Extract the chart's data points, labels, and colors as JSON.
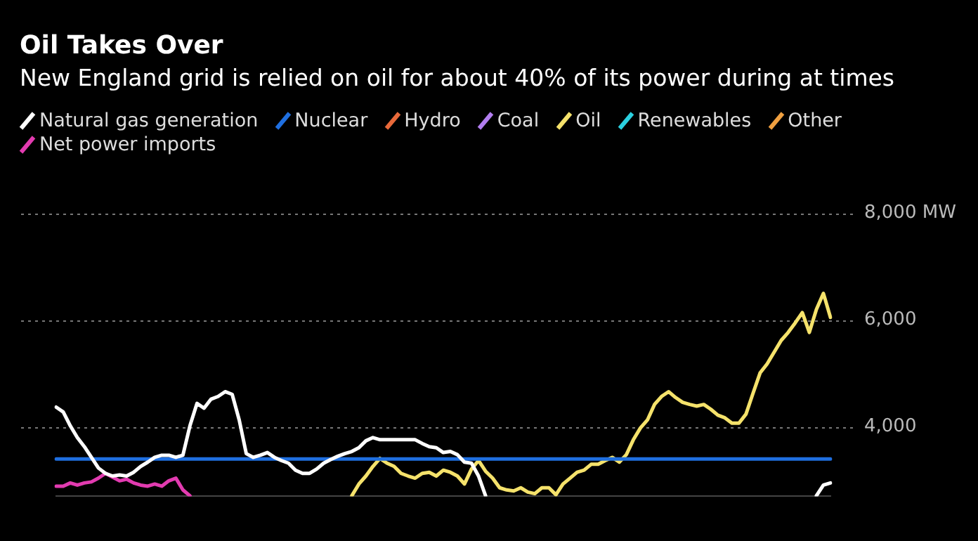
{
  "chart_data": {
    "type": "line",
    "title": "Oil Takes Over",
    "subtitle": "New England grid is relied on oil for about 40% of its power during at times",
    "categories": [
      null,
      null,
      null,
      null,
      null,
      null,
      null,
      null,
      null,
      null,
      null,
      null,
      null,
      null,
      null,
      null,
      null,
      null,
      null,
      null,
      null,
      null,
      null,
      null,
      null,
      null,
      null,
      null,
      null,
      null,
      null,
      null,
      null,
      null,
      null,
      null,
      null,
      null,
      null,
      null,
      null,
      null,
      null,
      null,
      null,
      null,
      null,
      null,
      null,
      null,
      null,
      null,
      null,
      null,
      null,
      null,
      null,
      null,
      null,
      null,
      null,
      null,
      null,
      null,
      null,
      null,
      null,
      null,
      null,
      null,
      null,
      null,
      null,
      null,
      null,
      null,
      null,
      null,
      null,
      null,
      null,
      null,
      null,
      null,
      null,
      null,
      null,
      null,
      null,
      null,
      null,
      null,
      null,
      null,
      null,
      null,
      null,
      null,
      null,
      null,
      null,
      null,
      null,
      null,
      null,
      null,
      null,
      null,
      null,
      null,
      null
    ],
    "series": [
      {
        "name": "Natural gas generation",
        "color": "#ffffff",
        "values": [
          4370,
          4280,
          4020,
          3800,
          3630,
          3430,
          3230,
          3130,
          3080,
          3100,
          3080,
          3150,
          3260,
          3340,
          3430,
          3470,
          3470,
          3430,
          3470,
          4020,
          4440,
          4350,
          4520,
          4570,
          4660,
          4610,
          4130,
          3500,
          3430,
          3470,
          3520,
          3430,
          3370,
          3320,
          3190,
          3130,
          3130,
          3210,
          3320,
          3390,
          3450,
          3500,
          3540,
          3610,
          3740,
          3800,
          3760,
          3760,
          3760,
          3760,
          3760,
          3760,
          3690,
          3630,
          3610,
          3520,
          3540,
          3480,
          3340,
          3320,
          3080,
          2710,
          null,
          null,
          null,
          null,
          null,
          null,
          null,
          null,
          null,
          null,
          null,
          null,
          null,
          null,
          null,
          null,
          null,
          null,
          null,
          null,
          null,
          null,
          null,
          null,
          null,
          null,
          null,
          null,
          null,
          null,
          null,
          null,
          null,
          null,
          null,
          null,
          null,
          null,
          null,
          null,
          null,
          null,
          null,
          null,
          null,
          null,
          2710,
          2910,
          2950
        ]
      },
      {
        "name": "Nuclear",
        "color": "#1f6fe0",
        "values": [
          3400,
          3400,
          3400,
          3400,
          3400,
          3400,
          3400,
          3400,
          3400,
          3400,
          3400,
          3400,
          3400,
          3400,
          3400,
          3400,
          3400,
          3400,
          3400,
          3400,
          3400,
          3400,
          3400,
          3400,
          3400,
          3400,
          3400,
          3400,
          3400,
          3400,
          3400,
          3400,
          3400,
          3400,
          3400,
          3400,
          3400,
          3400,
          3400,
          3400,
          3400,
          3400,
          3400,
          3400,
          3400,
          3400,
          3400,
          3400,
          3400,
          3400,
          3400,
          3400,
          3400,
          3400,
          3400,
          3400,
          3400,
          3400,
          3400,
          3400,
          3400,
          3400,
          3400,
          3400,
          3400,
          3400,
          3400,
          3400,
          3400,
          3400,
          3400,
          3400,
          3400,
          3400,
          3400,
          3400,
          3400,
          3400,
          3400,
          3400,
          3400,
          3400,
          3400,
          3400,
          3400,
          3400,
          3400,
          3400,
          3400,
          3400,
          3400,
          3400,
          3400,
          3400,
          3400,
          3400,
          3400,
          3400,
          3400,
          3400,
          3400,
          3400,
          3400,
          3400,
          3400,
          3400,
          3400,
          3400,
          3400,
          3400,
          3400
        ]
      },
      {
        "name": "Hydro",
        "color": "#e8693a",
        "values": [
          null,
          null,
          null,
          null,
          null,
          null,
          null,
          null,
          null,
          null,
          null,
          null,
          null,
          null,
          null,
          null,
          null,
          null,
          null,
          null,
          null,
          null,
          null,
          null,
          null,
          null,
          null,
          null,
          null,
          null,
          null,
          null,
          null,
          null,
          null,
          null,
          null,
          null,
          null,
          null,
          null,
          null,
          null,
          null,
          null,
          null,
          null,
          null,
          null,
          null,
          null,
          null,
          null,
          null,
          null,
          null,
          null,
          null,
          null,
          null,
          null,
          null,
          null,
          null,
          null,
          null,
          null,
          null,
          null,
          null,
          null,
          null,
          null,
          null,
          null,
          null,
          null,
          null,
          null,
          null,
          null,
          null,
          null,
          null,
          null,
          null,
          null,
          null,
          null,
          null,
          null,
          null,
          null,
          null,
          null,
          null,
          null,
          null,
          null,
          null,
          null,
          null,
          null,
          null,
          null,
          null,
          null,
          null,
          null,
          null,
          null
        ]
      },
      {
        "name": "Coal",
        "color": "#b27ef0",
        "values": [
          null,
          null,
          null,
          null,
          null,
          null,
          null,
          null,
          null,
          null,
          null,
          null,
          null,
          null,
          null,
          null,
          null,
          null,
          null,
          null,
          null,
          null,
          null,
          null,
          null,
          null,
          null,
          null,
          null,
          null,
          null,
          null,
          null,
          null,
          null,
          null,
          null,
          null,
          null,
          null,
          null,
          null,
          null,
          null,
          null,
          null,
          null,
          null,
          null,
          null,
          null,
          null,
          null,
          null,
          null,
          null,
          null,
          null,
          null,
          null,
          null,
          null,
          null,
          null,
          null,
          null,
          null,
          null,
          null,
          null,
          null,
          null,
          null,
          null,
          null,
          null,
          null,
          null,
          null,
          null,
          null,
          null,
          null,
          null,
          null,
          null,
          null,
          null,
          null,
          null,
          null,
          null,
          null,
          null,
          null,
          null,
          null,
          null,
          null,
          null,
          null,
          null,
          null,
          null,
          null,
          null,
          null,
          null,
          null,
          null,
          null
        ]
      },
      {
        "name": "Oil",
        "color": "#f5e26b",
        "values": [
          null,
          null,
          null,
          null,
          null,
          null,
          null,
          null,
          null,
          null,
          null,
          null,
          null,
          null,
          null,
          null,
          null,
          null,
          null,
          null,
          null,
          null,
          null,
          null,
          null,
          null,
          null,
          null,
          null,
          null,
          null,
          null,
          null,
          null,
          null,
          null,
          null,
          null,
          null,
          null,
          null,
          null,
          2710,
          2930,
          3080,
          3260,
          3410,
          3320,
          3260,
          3130,
          3080,
          3040,
          3130,
          3150,
          3080,
          3190,
          3150,
          3080,
          2930,
          3210,
          3370,
          3170,
          3040,
          2860,
          2820,
          2800,
          2860,
          2780,
          2750,
          2860,
          2860,
          2730,
          2930,
          3040,
          3150,
          3190,
          3300,
          3300,
          3370,
          3430,
          3340,
          3480,
          3760,
          3980,
          4130,
          4420,
          4570,
          4660,
          4550,
          4460,
          4420,
          4390,
          4420,
          4330,
          4220,
          4170,
          4070,
          4070,
          4240,
          4630,
          5010,
          5180,
          5400,
          5620,
          5770,
          5950,
          6140,
          5770,
          6200,
          6500,
          6050
        ]
      },
      {
        "name": "Renewables",
        "color": "#2bd0e0",
        "values": [
          null,
          null,
          null,
          null,
          null,
          null,
          null,
          null,
          null,
          null,
          null,
          null,
          null,
          null,
          null,
          null,
          null,
          null,
          null,
          null,
          null,
          null,
          null,
          null,
          null,
          null,
          null,
          null,
          null,
          null,
          null,
          null,
          null,
          null,
          null,
          null,
          null,
          null,
          null,
          null,
          null,
          null,
          null,
          null,
          null,
          null,
          null,
          null,
          null,
          null,
          null,
          null,
          null,
          null,
          null,
          null,
          null,
          null,
          null,
          null,
          null,
          null,
          null,
          null,
          null,
          null,
          null,
          null,
          null,
          null,
          null,
          null,
          null,
          null,
          null,
          null,
          null,
          null,
          null,
          null,
          null,
          null,
          null,
          null,
          null,
          null,
          null,
          null,
          null,
          null,
          null,
          null,
          null,
          null,
          null,
          null,
          null,
          null,
          null,
          null,
          null,
          null,
          null,
          null,
          null,
          null,
          null,
          null,
          null,
          null,
          null
        ]
      },
      {
        "name": "Other",
        "color": "#f0a040",
        "values": [
          null,
          null,
          null,
          null,
          null,
          null,
          null,
          null,
          null,
          null,
          null,
          null,
          null,
          null,
          null,
          null,
          null,
          null,
          null,
          null,
          null,
          null,
          null,
          null,
          null,
          null,
          null,
          null,
          null,
          null,
          null,
          null,
          null,
          null,
          null,
          null,
          null,
          null,
          null,
          null,
          null,
          null,
          null,
          null,
          null,
          null,
          null,
          null,
          null,
          null,
          null,
          null,
          null,
          null,
          null,
          null,
          null,
          null,
          null,
          null,
          null,
          null,
          null,
          null,
          null,
          null,
          null,
          null,
          null,
          null,
          null,
          null,
          null,
          null,
          null,
          null,
          null,
          null,
          null,
          null,
          null,
          null,
          null,
          null,
          null,
          null,
          null,
          null,
          null,
          null,
          null,
          null,
          null,
          null,
          null,
          null,
          null,
          null,
          null,
          null,
          null,
          null,
          null,
          null,
          null,
          null,
          null,
          null,
          null,
          null,
          null
        ]
      },
      {
        "name": "Net power imports",
        "color": "#e23bb0",
        "values": [
          2890,
          2890,
          2950,
          2910,
          2950,
          2970,
          3040,
          3130,
          3060,
          2990,
          3020,
          2950,
          2910,
          2890,
          2930,
          2890,
          2990,
          3040,
          2820,
          2710,
          null,
          null,
          null,
          null,
          null,
          null,
          null,
          null,
          null,
          null,
          null,
          null,
          null,
          null,
          null,
          null,
          null,
          null,
          null,
          null,
          null,
          null,
          null,
          null,
          null,
          null,
          null,
          null,
          null,
          null,
          null,
          null,
          null,
          null,
          null,
          null,
          null,
          null,
          null,
          null,
          null,
          null,
          null,
          null,
          null,
          null,
          null,
          null,
          null,
          null,
          null,
          null,
          null,
          null,
          null,
          null,
          null,
          null,
          null,
          null,
          null,
          null,
          null,
          null,
          null,
          null,
          null,
          null,
          null,
          null,
          null,
          null,
          null,
          null,
          null,
          null,
          null,
          null,
          null,
          null,
          null,
          null,
          null,
          null,
          null,
          null,
          null,
          null,
          null,
          null,
          null
        ]
      }
    ],
    "ylim": [
      2700,
      8000
    ],
    "yticks": [
      {
        "value": 4000,
        "label": "4,000"
      },
      {
        "value": 6000,
        "label": "6,000"
      },
      {
        "value": 8000,
        "label": "8,000 MW"
      }
    ],
    "grid": "y",
    "legend": "top",
    "marker": "none",
    "line_style": "solid",
    "tick_labels": "y"
  }
}
